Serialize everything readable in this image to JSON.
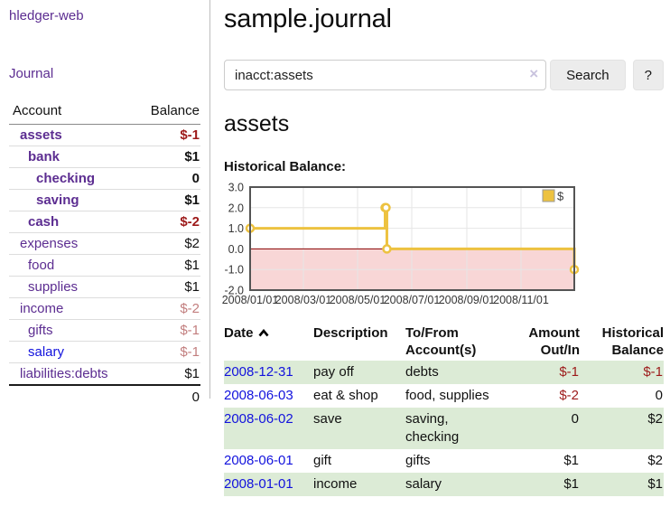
{
  "colors": {
    "accent_purple": "#5c2d91",
    "link_blue": "#1212dd",
    "negative_strong": "#9d1a1a",
    "negative_soft": "#c27e7e",
    "row_green": "#dcebd6",
    "series_gold": "#EDC240",
    "chart_negative_bg": "#f8d6d6",
    "zero_line": "#8b0000",
    "grid_line": "#e6e6e6",
    "chart_border": "#545454"
  },
  "sidebar": {
    "brand": "hledger-web",
    "journal_link": "Journal",
    "accounts_table": {
      "account_header": "Account",
      "balance_header": "Balance",
      "rows": [
        {
          "name": "assets",
          "depth": 1,
          "bold": true,
          "balance": "$-1",
          "neg": "strong"
        },
        {
          "name": "bank",
          "depth": 2,
          "bold": true,
          "balance": "$1",
          "neg": "none"
        },
        {
          "name": "checking",
          "depth": 3,
          "bold": true,
          "balance": "0",
          "neg": "none"
        },
        {
          "name": "saving",
          "depth": 3,
          "bold": true,
          "balance": "$1",
          "neg": "none"
        },
        {
          "name": "cash",
          "depth": 2,
          "bold": true,
          "balance": "$-2",
          "neg": "strong"
        },
        {
          "name": "expenses",
          "depth": 1,
          "bold": false,
          "balance": "$2",
          "neg": "none"
        },
        {
          "name": "food",
          "depth": 2,
          "bold": false,
          "balance": "$1",
          "neg": "none"
        },
        {
          "name": "supplies",
          "depth": 2,
          "bold": false,
          "balance": "$1",
          "neg": "none"
        },
        {
          "name": "income",
          "depth": 1,
          "bold": false,
          "balance": "$-2",
          "neg": "soft"
        },
        {
          "name": "gifts",
          "depth": 2,
          "bold": false,
          "balance": "$-1",
          "neg": "soft"
        },
        {
          "name": "salary",
          "depth": 2,
          "bold": false,
          "balance": "$-1",
          "neg": "soft",
          "blue": true
        },
        {
          "name": "liabilities:debts",
          "depth": 1,
          "bold": false,
          "balance": "$1",
          "neg": "none"
        }
      ],
      "total": "0"
    }
  },
  "main": {
    "title": "sample.journal",
    "search": {
      "value": "inacct:assets",
      "clear_icon": "×",
      "search_button": "Search",
      "help_button": "?"
    },
    "account_heading": "assets",
    "chart_heading": "Historical Balance:"
  },
  "chart_data": {
    "type": "line",
    "step": true,
    "series": [
      {
        "name": "$",
        "color": "#EDC240",
        "points": [
          [
            "2008-01-01",
            1
          ],
          [
            "2008-06-01",
            2
          ],
          [
            "2008-06-02",
            2
          ],
          [
            "2008-06-03",
            0
          ],
          [
            "2008-12-31",
            -1
          ]
        ]
      }
    ],
    "x_ticks": [
      "2008/01/01",
      "2008/03/01",
      "2008/05/01",
      "2008/07/01",
      "2008/09/01",
      "2008/11/01"
    ],
    "y_ticks": [
      3.0,
      2.0,
      1.0,
      0.0,
      -1.0,
      -2.0
    ],
    "xlim": [
      "2008-01-01",
      "2008-12-31"
    ],
    "ylim": [
      -2,
      3
    ],
    "grid": true,
    "negative_region_shaded": true,
    "legend_position": "top-right"
  },
  "register_table": {
    "headers": {
      "date": "Date",
      "description": "Description",
      "tofrom": "To/From Account(s)",
      "amount": "Amount Out/In",
      "balance": "Historical Balance"
    },
    "rows": [
      {
        "date": "2008-12-31",
        "description": "pay off",
        "accounts": "debts",
        "amount": "$-1",
        "amount_neg": true,
        "balance": "$-1",
        "balance_neg": true,
        "green": true
      },
      {
        "date": "2008-06-03",
        "description": "eat & shop",
        "accounts": "food, supplies",
        "amount": "$-2",
        "amount_neg": true,
        "balance": "0",
        "balance_neg": false,
        "green": false
      },
      {
        "date": "2008-06-02",
        "description": "save",
        "accounts": "saving, checking",
        "amount": "0",
        "amount_neg": false,
        "balance": "$2",
        "balance_neg": false,
        "green": true
      },
      {
        "date": "2008-06-01",
        "description": "gift",
        "accounts": "gifts",
        "amount": "$1",
        "amount_neg": false,
        "balance": "$2",
        "balance_neg": false,
        "green": false
      },
      {
        "date": "2008-01-01",
        "description": "income",
        "accounts": "salary",
        "amount": "$1",
        "amount_neg": false,
        "balance": "$1",
        "balance_neg": false,
        "green": true
      }
    ]
  }
}
